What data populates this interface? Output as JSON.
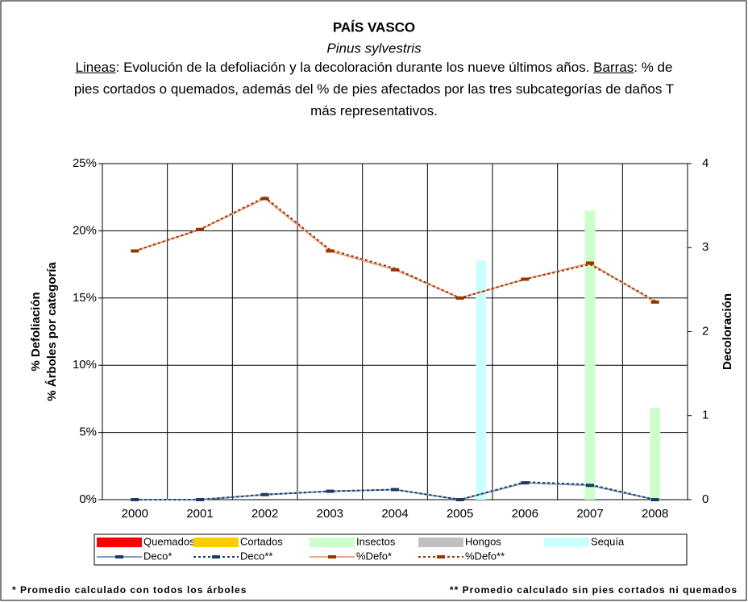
{
  "chart_data": {
    "type": "combo",
    "title": "PAÍS VASCO",
    "subtitle": "Pinus sylvestris",
    "description": [
      {
        "label": "Lineas",
        "text": ": Evolución de la defoliación y la decoloración durante los nueve últimos años. "
      },
      {
        "label": "Barras",
        "text": ": % de pies cortados o quemados, además del % de pies afectados por las tres subcategorías de daños T más representativos."
      }
    ],
    "categories": [
      "2000",
      "2001",
      "2002",
      "2003",
      "2004",
      "2005",
      "2006",
      "2007",
      "2008"
    ],
    "ylabel": [
      "% Defoliación",
      "% Árboles por categoría"
    ],
    "y2label": "Decoloración",
    "ylim": [
      0,
      25
    ],
    "yticks": [
      {
        "value": 0,
        "label": "0%"
      },
      {
        "value": 5,
        "label": "5%"
      },
      {
        "value": 10,
        "label": "10%"
      },
      {
        "value": 15,
        "label": "15%"
      },
      {
        "value": 20,
        "label": "20%"
      },
      {
        "value": 25,
        "label": "25%"
      }
    ],
    "y2lim": [
      0,
      4
    ],
    "y2ticks": [
      0,
      1,
      2,
      3,
      4
    ],
    "grid": true,
    "series": [
      {
        "name": "Quemados",
        "type": "bar",
        "color": "#ff0000",
        "values": [
          0,
          0,
          0,
          0,
          0,
          0,
          0,
          0,
          0
        ]
      },
      {
        "name": "Cortados",
        "type": "bar",
        "color": "#ffcc00",
        "values": [
          0,
          0,
          0,
          0,
          0,
          0,
          0,
          0,
          0
        ]
      },
      {
        "name": "Insectos",
        "type": "bar",
        "color": "#ccffcc",
        "values": [
          0,
          0,
          0,
          0,
          0,
          0,
          0,
          21.5,
          6.8
        ]
      },
      {
        "name": "Hongos",
        "type": "bar",
        "color": "#c0c0c0",
        "values": [
          0,
          0,
          0,
          0,
          0,
          0,
          0,
          0,
          0
        ]
      },
      {
        "name": "Sequía",
        "type": "bar",
        "color": "#ccffff",
        "values": [
          0,
          0,
          0,
          0,
          0,
          17.8,
          0,
          0,
          0
        ]
      },
      {
        "name": "Deco*",
        "type": "line",
        "axis": "y2",
        "color": "#7f9fbf",
        "marker_color": "#1f3864",
        "dashed": false,
        "values": [
          0,
          0,
          0.06,
          0.1,
          0.12,
          0,
          0.2,
          0.17,
          0
        ]
      },
      {
        "name": "Deco**",
        "type": "line",
        "axis": "y2",
        "color": "#1f3864",
        "marker_color": "#1f3864",
        "dashed": true,
        "values": [
          0,
          0,
          0.06,
          0.1,
          0.12,
          0,
          0.21,
          0.18,
          0
        ]
      },
      {
        "name": "%Defo*",
        "type": "line",
        "color": "#e8a888",
        "marker_color": "#993300",
        "dashed": false,
        "values": [
          18.5,
          20.1,
          22.4,
          18.5,
          17.1,
          15.0,
          16.4,
          17.6,
          14.7
        ]
      },
      {
        "name": "%Defo**",
        "type": "line",
        "color": "#993300",
        "marker_color": "#993300",
        "dashed": true,
        "values": [
          18.5,
          20.1,
          22.5,
          18.6,
          17.2,
          15.0,
          16.4,
          17.5,
          14.8
        ]
      }
    ],
    "notes": [
      "* Promedio calculado con todos los árboles",
      "** Promedio calculado sin pies cortados ni quemados"
    ]
  }
}
